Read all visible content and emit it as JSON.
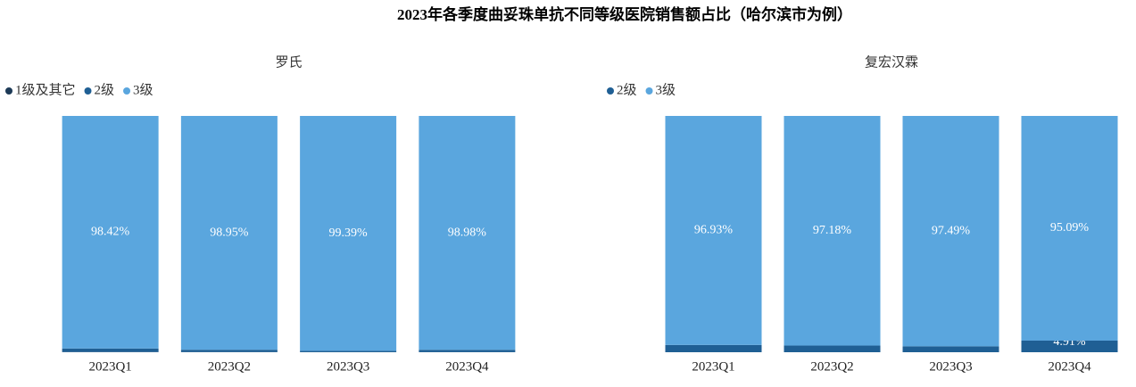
{
  "title": "2023年各季度曲妥珠单抗不同等级医院销售额占比（哈尔滨市为例）",
  "chart_data": [
    {
      "type": "stacked_bar",
      "title": "罗氏",
      "categories": [
        "2023Q1",
        "2023Q2",
        "2023Q3",
        "2023Q4"
      ],
      "ylim": [
        0,
        100
      ],
      "series": [
        {
          "name": "1级及其它",
          "color": "#1d3a57",
          "values": [
            0.08,
            0.05,
            0.01,
            0.02
          ]
        },
        {
          "name": "2级",
          "color": "#1f5f94",
          "values": [
            1.5,
            1.0,
            0.6,
            1.0
          ]
        },
        {
          "name": "3级",
          "color": "#5aa6de",
          "values": [
            98.42,
            98.95,
            99.39,
            98.98
          ],
          "value_labels": [
            "98.42%",
            "98.95%",
            "99.39%",
            "98.98%"
          ]
        }
      ]
    },
    {
      "type": "stacked_bar",
      "title": "复宏汉霖",
      "categories": [
        "2023Q1",
        "2023Q2",
        "2023Q3",
        "2023Q4"
      ],
      "ylim": [
        0,
        100
      ],
      "series": [
        {
          "name": "2级",
          "color": "#1f5f94",
          "values": [
            3.07,
            2.82,
            2.51,
            4.91
          ],
          "value_labels": [
            null,
            null,
            null,
            "4.91%"
          ]
        },
        {
          "name": "3级",
          "color": "#5aa6de",
          "values": [
            96.93,
            97.18,
            97.49,
            95.09
          ],
          "value_labels": [
            "96.93%",
            "97.18%",
            "97.49%",
            "95.09%"
          ]
        }
      ]
    }
  ]
}
